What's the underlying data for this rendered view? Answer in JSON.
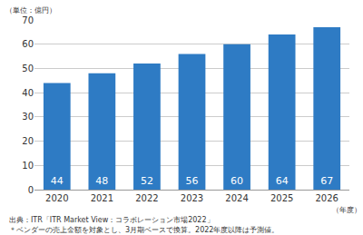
{
  "chart_data": {
    "type": "bar",
    "y_label": "（単位：億円）",
    "x_label": "（年度）",
    "categories": [
      "2020",
      "2021",
      "2022",
      "2023",
      "2024",
      "2025",
      "2026"
    ],
    "values": [
      44,
      48,
      52,
      56,
      60,
      64,
      67
    ],
    "color": "#2e7bc4",
    "ylim": [
      0,
      70
    ],
    "yticks": [
      0,
      10,
      20,
      30,
      40,
      50,
      60,
      70
    ],
    "grid": true,
    "data_labels": true,
    "notes": [
      "出典：ITR「ITR Market View：コラボレーション市場2022」",
      "＊ベンダーの売上金額を対象とし、3月期ベースで換算。2022年度以降は予測値。"
    ]
  }
}
